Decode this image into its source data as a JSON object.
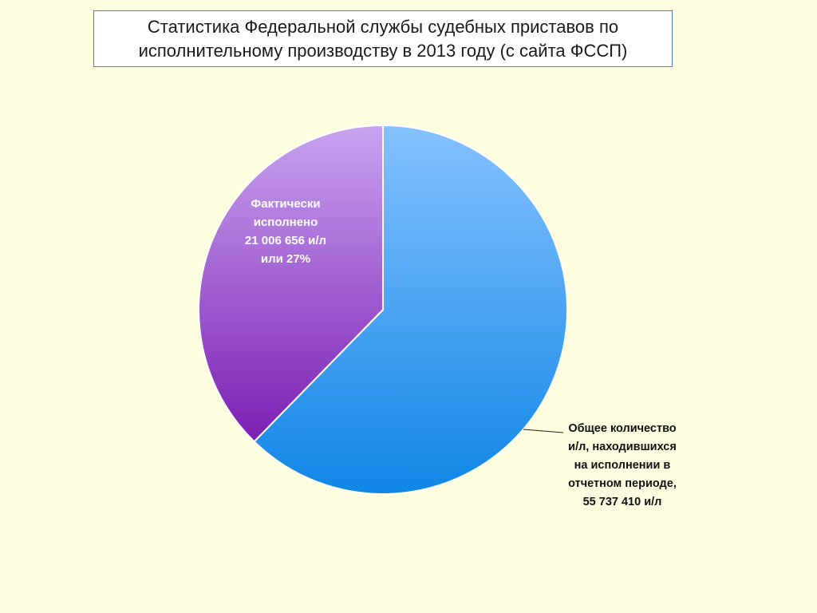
{
  "title": {
    "line1": "Статистика Федеральной службы судебных приставов по",
    "line2": "исполнительному производству в 2013 году (с сайта ФССП)"
  },
  "chart_data": {
    "type": "pie",
    "title": "Статистика Федеральной службы судебных приставов по исполнительному производству в 2013 году (с сайта ФССП)",
    "slices": [
      {
        "label_lines": [
          "Общее количество",
          "и/л, находившихся",
          "на исполнении в",
          "отчетном периоде,",
          "55 737 410 и/л"
        ],
        "value": 55737410,
        "color_top": "#86c2ff",
        "color_bottom": "#0f86e6"
      },
      {
        "label_lines": [
          "Фактически",
          "исполнено",
          "21 006 656 и/л",
          "или 27%"
        ],
        "value": 21006656,
        "percent": 27,
        "color_top": "#c9a3f0",
        "color_bottom": "#7a1fb3"
      }
    ]
  }
}
